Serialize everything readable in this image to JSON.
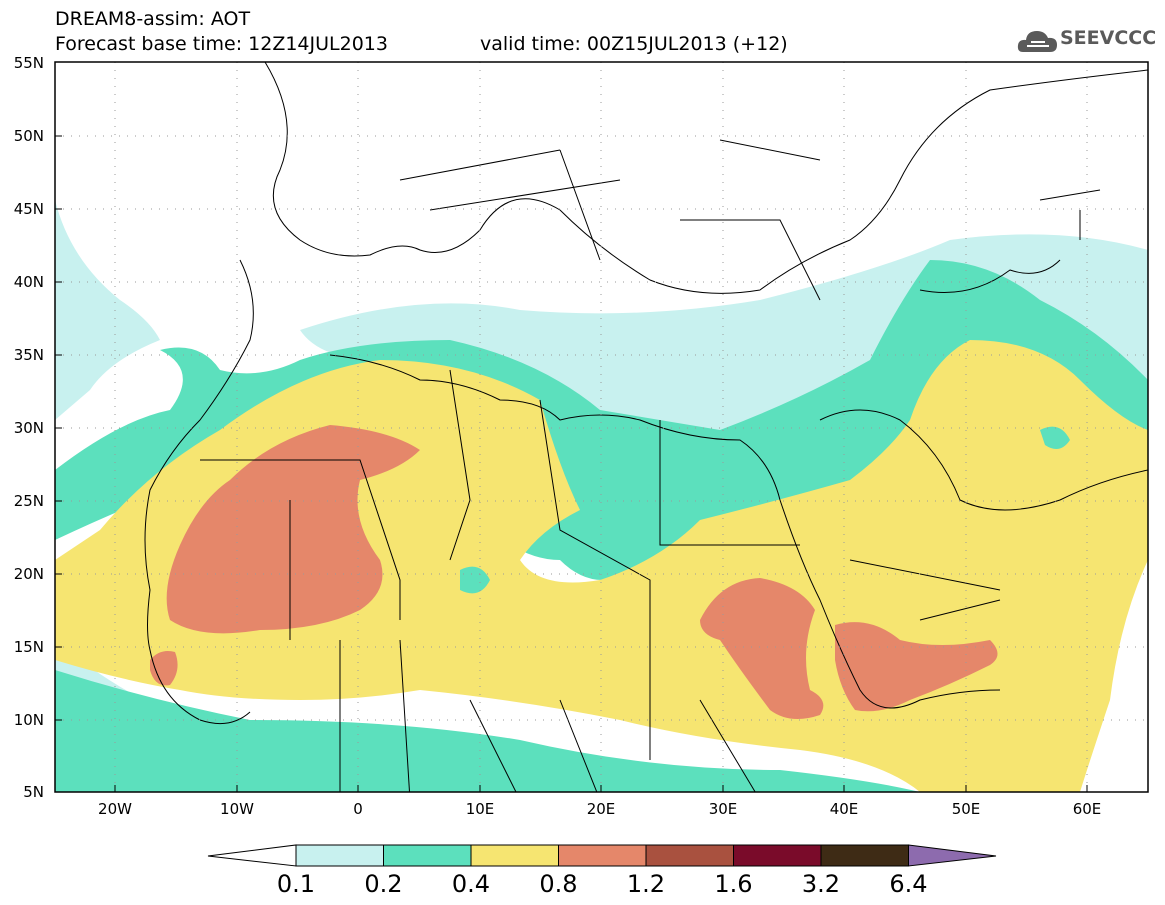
{
  "header": {
    "line1": "DREAM8-assim: AOT",
    "line2": "Forecast base time: 12Z14JUL2013",
    "line3": "valid time: 00Z15JUL2013 (+12)"
  },
  "logo": {
    "text": "SEEVCCC",
    "icon": "cloud-icon"
  },
  "axes": {
    "y_labels": [
      "55N",
      "50N",
      "45N",
      "40N",
      "35N",
      "30N",
      "25N",
      "20N",
      "15N",
      "10N",
      "5N"
    ],
    "x_labels": [
      "20W",
      "10W",
      "0",
      "10E",
      "20E",
      "30E",
      "40E",
      "50E",
      "60E"
    ]
  },
  "colorbar": {
    "labels": [
      "0.1",
      "0.2",
      "0.4",
      "0.8",
      "1.2",
      "1.6",
      "3.2",
      "6.4"
    ],
    "colors": [
      "#c8f1ef",
      "#5ce0bd",
      "#f6e571",
      "#e5876a",
      "#a9513f",
      "#7a0b2a",
      "#3e2b15",
      "#8d6bae"
    ]
  },
  "legend_colors": {
    "aot_0_1_0_2": "#c8f1ef",
    "aot_0_2_0_4": "#5ce0bd",
    "aot_0_4_0_8": "#f6e571",
    "aot_0_8_1_2": "#e5876a"
  }
}
